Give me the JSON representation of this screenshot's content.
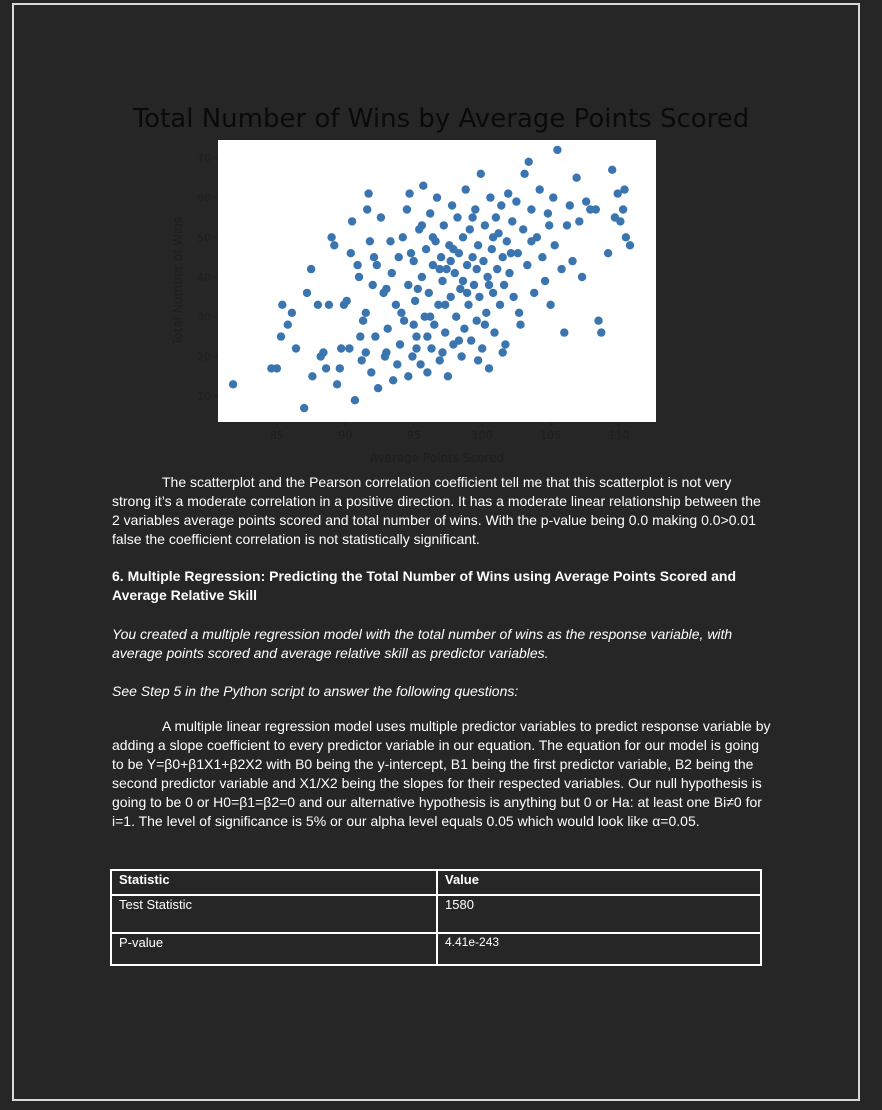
{
  "chart": {
    "title": "Total Number of Wins by Average Points Scored"
  },
  "chart_data": {
    "type": "scatter",
    "title": "Total Number of Wins by Average Points Scored",
    "xlabel": "Average Points Scored",
    "ylabel": "Total Number of Wins",
    "xlim": [
      80.7,
      112.7
    ],
    "ylim": [
      3.5,
      74.5
    ],
    "xticks": [
      85,
      90,
      95,
      100,
      105,
      110
    ],
    "yticks": [
      10,
      20,
      30,
      40,
      50,
      60,
      70
    ],
    "grid": false,
    "color": "#3b75af",
    "points": [
      [
        81.8,
        13
      ],
      [
        84.6,
        17
      ],
      [
        85.0,
        17
      ],
      [
        85.3,
        25
      ],
      [
        85.4,
        33
      ],
      [
        85.8,
        28
      ],
      [
        86.1,
        31
      ],
      [
        86.4,
        22
      ],
      [
        87.0,
        7
      ],
      [
        87.2,
        36
      ],
      [
        87.5,
        42
      ],
      [
        87.6,
        15
      ],
      [
        88.0,
        33
      ],
      [
        88.2,
        20
      ],
      [
        88.4,
        21
      ],
      [
        88.6,
        17
      ],
      [
        88.8,
        33
      ],
      [
        89.0,
        50
      ],
      [
        89.2,
        48
      ],
      [
        89.4,
        13
      ],
      [
        89.6,
        17
      ],
      [
        89.7,
        22
      ],
      [
        89.9,
        33
      ],
      [
        90.1,
        34
      ],
      [
        90.3,
        22
      ],
      [
        90.4,
        46
      ],
      [
        90.5,
        54
      ],
      [
        90.7,
        9
      ],
      [
        90.9,
        43
      ],
      [
        91.0,
        40
      ],
      [
        91.1,
        25
      ],
      [
        91.2,
        19
      ],
      [
        91.3,
        29
      ],
      [
        91.5,
        31
      ],
      [
        91.6,
        57
      ],
      [
        91.7,
        61
      ],
      [
        91.9,
        16
      ],
      [
        92.0,
        38
      ],
      [
        92.1,
        45
      ],
      [
        92.2,
        25
      ],
      [
        92.4,
        12
      ],
      [
        92.6,
        55
      ],
      [
        92.8,
        36
      ],
      [
        93.0,
        21
      ],
      [
        93.1,
        27
      ],
      [
        93.3,
        49
      ],
      [
        93.5,
        14
      ],
      [
        93.7,
        33
      ],
      [
        93.9,
        45
      ],
      [
        94.0,
        23
      ],
      [
        94.2,
        50
      ],
      [
        94.3,
        29
      ],
      [
        94.5,
        57
      ],
      [
        94.6,
        38
      ],
      [
        94.7,
        61
      ],
      [
        94.9,
        20
      ],
      [
        95.0,
        44
      ],
      [
        95.1,
        34
      ],
      [
        95.2,
        25
      ],
      [
        95.4,
        52
      ],
      [
        95.5,
        18
      ],
      [
        95.6,
        40
      ],
      [
        95.7,
        63
      ],
      [
        95.8,
        30
      ],
      [
        95.9,
        47
      ],
      [
        96.0,
        16
      ],
      [
        96.1,
        36
      ],
      [
        96.2,
        56
      ],
      [
        96.3,
        22
      ],
      [
        96.4,
        43
      ],
      [
        96.5,
        28
      ],
      [
        96.6,
        49
      ],
      [
        96.7,
        60
      ],
      [
        96.8,
        33
      ],
      [
        96.9,
        19
      ],
      [
        97.0,
        45
      ],
      [
        97.1,
        39
      ],
      [
        97.2,
        53
      ],
      [
        97.3,
        26
      ],
      [
        97.4,
        42
      ],
      [
        97.5,
        15
      ],
      [
        97.6,
        48
      ],
      [
        97.7,
        35
      ],
      [
        97.8,
        58
      ],
      [
        97.9,
        23
      ],
      [
        98.0,
        41
      ],
      [
        98.1,
        30
      ],
      [
        98.2,
        55
      ],
      [
        98.3,
        46
      ],
      [
        98.4,
        37
      ],
      [
        98.5,
        20
      ],
      [
        98.6,
        50
      ],
      [
        98.7,
        27
      ],
      [
        98.8,
        62
      ],
      [
        98.9,
        43
      ],
      [
        99.0,
        33
      ],
      [
        99.1,
        52
      ],
      [
        99.2,
        24
      ],
      [
        99.3,
        45
      ],
      [
        99.4,
        38
      ],
      [
        99.5,
        57
      ],
      [
        99.6,
        29
      ],
      [
        99.7,
        48
      ],
      [
        99.8,
        35
      ],
      [
        99.9,
        66
      ],
      [
        100.0,
        22
      ],
      [
        100.1,
        44
      ],
      [
        100.2,
        53
      ],
      [
        100.3,
        31
      ],
      [
        100.4,
        40
      ],
      [
        100.5,
        17
      ],
      [
        100.6,
        60
      ],
      [
        100.7,
        47
      ],
      [
        100.8,
        36
      ],
      [
        100.9,
        26
      ],
      [
        101.0,
        55
      ],
      [
        101.1,
        42
      ],
      [
        101.2,
        51
      ],
      [
        101.3,
        33
      ],
      [
        101.4,
        58
      ],
      [
        101.5,
        45
      ],
      [
        101.6,
        38
      ],
      [
        101.7,
        23
      ],
      [
        101.8,
        49
      ],
      [
        101.9,
        61
      ],
      [
        102.0,
        41
      ],
      [
        102.2,
        54
      ],
      [
        102.3,
        35
      ],
      [
        102.5,
        59
      ],
      [
        102.6,
        46
      ],
      [
        102.8,
        28
      ],
      [
        103.0,
        52
      ],
      [
        103.1,
        66
      ],
      [
        103.3,
        43
      ],
      [
        103.4,
        69
      ],
      [
        103.6,
        57
      ],
      [
        103.8,
        36
      ],
      [
        104.0,
        50
      ],
      [
        104.2,
        62
      ],
      [
        104.4,
        45
      ],
      [
        104.6,
        39
      ],
      [
        104.8,
        56
      ],
      [
        105.0,
        33
      ],
      [
        105.2,
        60
      ],
      [
        105.3,
        48
      ],
      [
        105.5,
        72
      ],
      [
        105.8,
        42
      ],
      [
        106.0,
        26
      ],
      [
        106.2,
        53
      ],
      [
        106.4,
        58
      ],
      [
        106.6,
        44
      ],
      [
        106.9,
        65
      ],
      [
        107.1,
        54
      ],
      [
        107.3,
        40
      ],
      [
        107.6,
        59
      ],
      [
        107.9,
        57
      ],
      [
        108.3,
        57
      ],
      [
        108.5,
        29
      ],
      [
        108.7,
        26
      ],
      [
        109.2,
        46
      ],
      [
        109.5,
        67
      ],
      [
        109.7,
        55
      ],
      [
        109.9,
        61
      ],
      [
        110.1,
        54
      ],
      [
        110.3,
        57
      ],
      [
        110.5,
        50
      ],
      [
        110.8,
        48
      ],
      [
        110.4,
        62
      ],
      [
        93.4,
        41
      ],
      [
        94.8,
        46
      ],
      [
        95.3,
        37
      ],
      [
        96.9,
        42
      ],
      [
        97.7,
        44
      ],
      [
        98.6,
        39
      ],
      [
        99.6,
        42
      ],
      [
        100.5,
        38
      ],
      [
        96.2,
        30
      ],
      [
        95.0,
        28
      ],
      [
        97.3,
        33
      ],
      [
        98.9,
        36
      ],
      [
        94.1,
        31
      ],
      [
        93.0,
        37
      ],
      [
        92.3,
        43
      ],
      [
        91.8,
        49
      ],
      [
        95.6,
        53
      ],
      [
        96.4,
        50
      ],
      [
        97.9,
        47
      ],
      [
        99.3,
        55
      ],
      [
        100.8,
        50
      ],
      [
        102.1,
        46
      ],
      [
        103.6,
        49
      ],
      [
        104.9,
        53
      ],
      [
        95.2,
        22
      ],
      [
        96.0,
        25
      ],
      [
        97.1,
        21
      ],
      [
        98.3,
        24
      ],
      [
        99.7,
        19
      ],
      [
        101.5,
        21
      ],
      [
        102.7,
        31
      ],
      [
        100.2,
        28
      ],
      [
        93.8,
        18
      ],
      [
        94.6,
        15
      ],
      [
        92.9,
        20
      ],
      [
        91.5,
        21
      ]
    ]
  },
  "body": {
    "p1": "The scatterplot and the Pearson correlation coefficient tell me that this scatterplot is not very strong it’s a moderate correlation in a positive direction. It has a moderate linear relationship between the 2 variables average points scored and total number of wins. With the p-value being 0.0 making 0.0>0.01 false the coefficient correlation is not statistically significant.",
    "heading": "6. Multiple Regression: Predicting the Total Number of Wins using Average Points Scored and Average Relative Skill",
    "italic1": "You created a multiple regression model with the total number of wins as the response variable, with average points scored and average relative skill as predictor variables.",
    "italic2": "See Step 5 in the Python script to answer the following questions:",
    "p2": "A multiple linear regression model uses multiple predictor variables to predict response variable by adding a slope coefficient to every predictor variable in our equation. The equation for our model is going to be Y=β0+β1X1+β2X2 with B0 being the y-intercept, B1 being the first predictor variable, B2 being the second predictor variable and X1/X2 being the slopes for their respected variables. Our null hypothesis is going to be 0 or H0=β1=β2=0 and our alternative hypothesis is anything but 0 or Ha: at least one Bi≠0 for i=1. The level of significance is 5% or our alpha level equals 0.05 which would look like α=0.05."
  },
  "table": {
    "header": [
      "Statistic",
      "Value"
    ],
    "rows": [
      [
        "Test Statistic",
        "1580"
      ],
      [
        "P-value",
        "4.41e-243"
      ]
    ]
  }
}
